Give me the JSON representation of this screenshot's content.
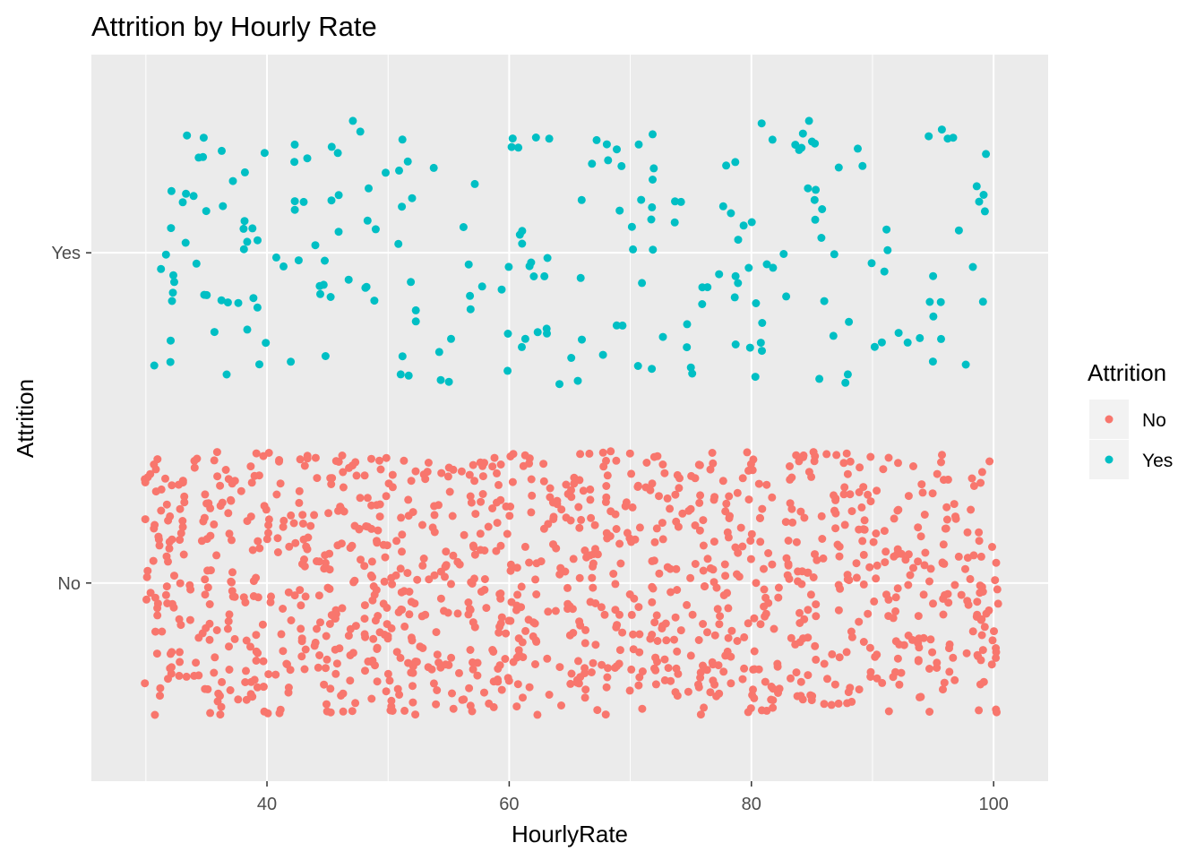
{
  "chart_data": {
    "type": "scatter",
    "title": "Attrition by Hourly Rate",
    "xlabel": "HourlyRate",
    "ylabel": "Attrition",
    "xlim": [
      25.5,
      104.5
    ],
    "x_ticks": [
      40,
      60,
      80,
      100
    ],
    "x_tick_labels": [
      "40",
      "60",
      "80",
      "100"
    ],
    "categories": [
      "No",
      "Yes"
    ],
    "jitter": "vertical jitter within each category",
    "grid": true,
    "background": "#ebebeb",
    "legend": {
      "title": "Attrition",
      "position": "right"
    },
    "series": [
      {
        "name": "No",
        "color": "#f8766d",
        "count": 1233,
        "x_range": [
          30,
          100
        ]
      },
      {
        "name": "Yes",
        "color": "#00bfc4",
        "count": 237,
        "x_range": [
          31,
          100
        ]
      }
    ]
  }
}
